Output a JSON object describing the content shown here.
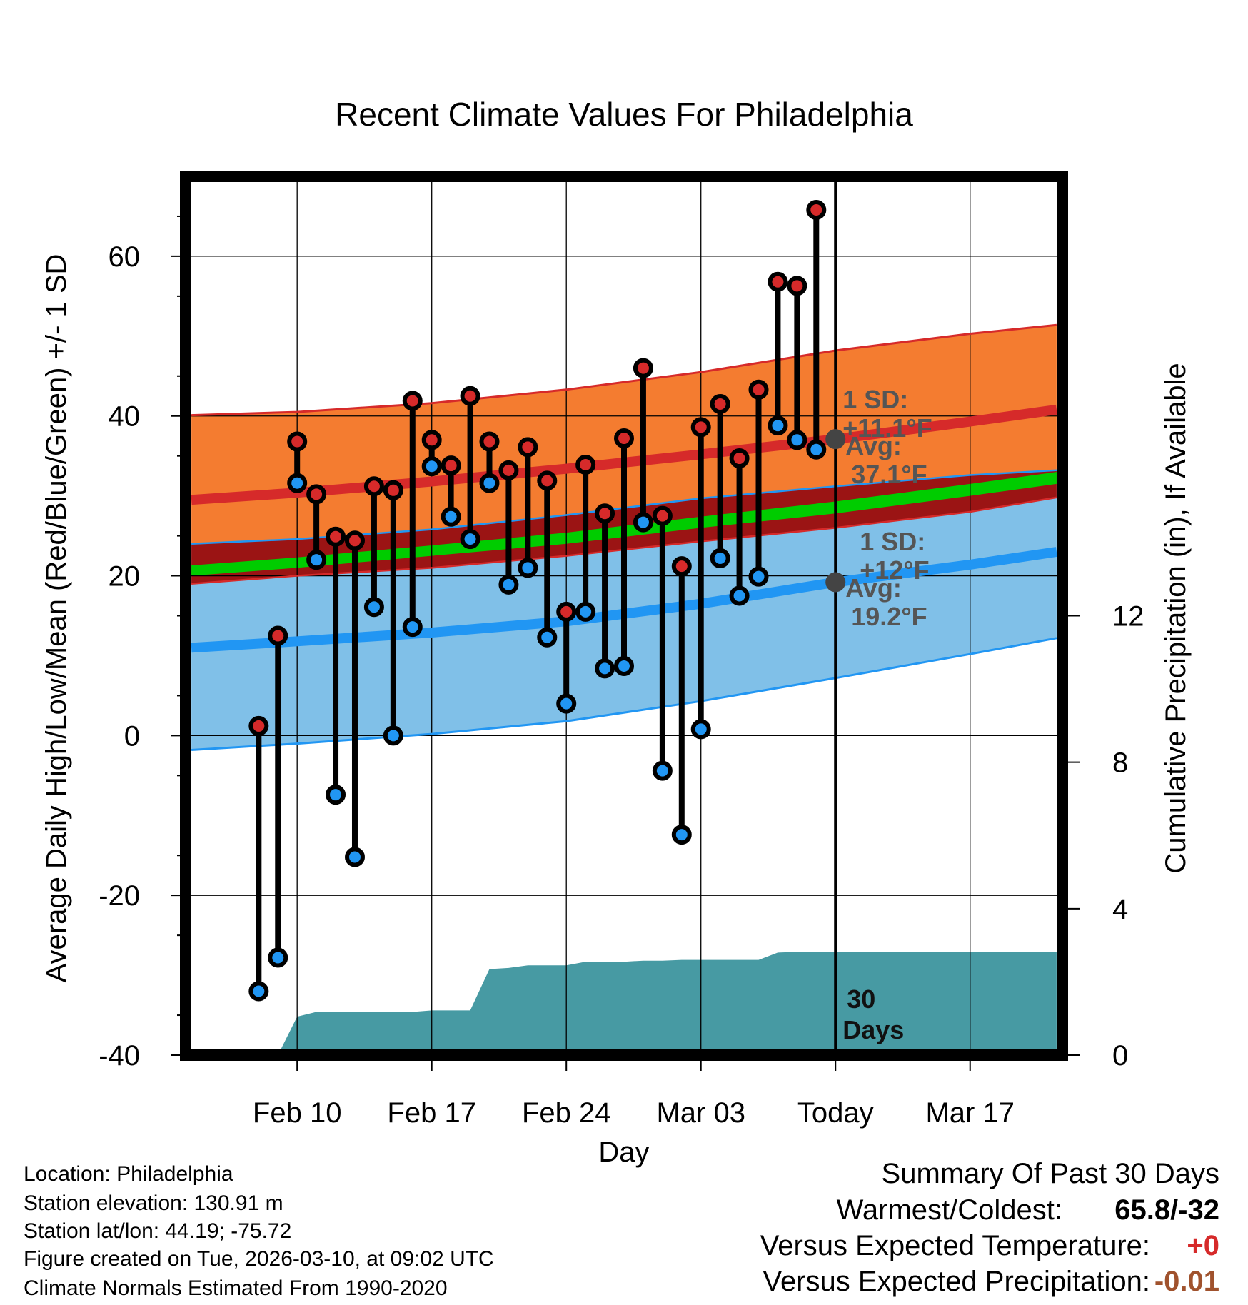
{
  "chart_data": {
    "type": "line",
    "title": "Recent Climate Values For Philadelphia",
    "xlabel": "Day",
    "ylabel": "Average Daily High/Low/Mean (Red/Blue/Green) +/- 1 SD",
    "y2label": "Cumulative Precipitation (in), If Available",
    "x_range_days": [
      -33.8,
      11.8
    ],
    "ylim": [
      -40,
      70
    ],
    "y2lim": [
      0,
      24
    ],
    "x_ticks": [
      {
        "day": -28,
        "label": "Feb 10"
      },
      {
        "day": -21,
        "label": "Feb 17"
      },
      {
        "day": -14,
        "label": "Feb 24"
      },
      {
        "day": -7,
        "label": "Mar 03"
      },
      {
        "day": 0,
        "label": "Today"
      },
      {
        "day": 7,
        "label": "Mar 17"
      }
    ],
    "y_ticks": [
      -40,
      -20,
      0,
      20,
      40,
      60
    ],
    "y2_ticks": [
      0,
      4,
      8,
      12
    ],
    "grid": true,
    "normals": {
      "days": [
        -33.5,
        -28,
        -21,
        -14,
        -7,
        0,
        7,
        11.5
      ],
      "high_avg": [
        29.5,
        30.4,
        31.8,
        33.4,
        35.2,
        37.1,
        39.3,
        40.8
      ],
      "high_upper": [
        40.1,
        40.5,
        41.6,
        43.3,
        45.5,
        48.2,
        50.3,
        51.4
      ],
      "high_lower": [
        19.0,
        20.0,
        21.0,
        22.5,
        24.3,
        26.0,
        28.0,
        29.8
      ],
      "low_avg": [
        11.0,
        11.8,
        12.9,
        14.3,
        16.5,
        19.2,
        21.4,
        23.0
      ],
      "low_upper": [
        24.0,
        24.6,
        25.8,
        27.6,
        29.7,
        31.2,
        32.6,
        33.2
      ],
      "low_lower": [
        -1.8,
        -1.0,
        0.2,
        1.8,
        4.3,
        7.2,
        10.2,
        12.2
      ],
      "mean_band_lower": [
        20.0,
        21.0,
        22.5,
        24.0,
        26.0,
        27.8,
        30.0,
        31.5
      ],
      "mean_band_upper": [
        21.3,
        22.3,
        23.8,
        25.4,
        27.4,
        29.3,
        31.5,
        33.0
      ]
    },
    "series": [
      {
        "name": "Daily High",
        "color": "#d62a2a",
        "days": [
          -30,
          -29,
          -28,
          -27,
          -26,
          -25,
          -24,
          -23,
          -22,
          -21,
          -20,
          -19,
          -18,
          -17,
          -16,
          -15,
          -14,
          -13,
          -12,
          -11,
          -10,
          -9,
          -8,
          -7,
          -6,
          -5,
          -4,
          -3,
          -2,
          -1
        ],
        "values": [
          1.2,
          12.5,
          36.8,
          30.2,
          24.9,
          24.4,
          31.2,
          30.7,
          41.9,
          37.0,
          33.8,
          42.5,
          36.8,
          33.2,
          36.1,
          31.9,
          15.5,
          33.9,
          27.8,
          37.2,
          46.0,
          27.5,
          21.2,
          38.6,
          41.5,
          34.7,
          43.3,
          56.8,
          56.3,
          65.8
        ]
      },
      {
        "name": "Daily Low",
        "color": "#2196f3",
        "days": [
          -30,
          -29,
          -28,
          -27,
          -26,
          -25,
          -24,
          -23,
          -22,
          -21,
          -20,
          -19,
          -18,
          -17,
          -16,
          -15,
          -14,
          -13,
          -12,
          -11,
          -10,
          -9,
          -8,
          -7,
          -6,
          -5,
          -4,
          -3,
          -2,
          -1
        ],
        "values": [
          -32.0,
          -27.8,
          31.6,
          22.0,
          -7.4,
          -15.2,
          16.1,
          0.0,
          13.6,
          33.7,
          27.4,
          24.6,
          31.6,
          18.9,
          21.0,
          12.3,
          4.0,
          15.5,
          8.4,
          8.7,
          26.7,
          -4.4,
          -12.4,
          0.8,
          22.2,
          17.5,
          19.9,
          38.8,
          37.0,
          35.8
        ]
      },
      {
        "name": "Cumulative Precipitation",
        "days": [
          -33.5,
          -29,
          -28,
          -27,
          -26,
          -22,
          -21,
          -20,
          -19,
          -18,
          -17,
          -16,
          -15,
          -14,
          -13,
          -12,
          -11,
          -10,
          -9,
          -8,
          -7,
          -6,
          -5,
          -4,
          -3,
          -2,
          -1,
          0,
          5,
          11.5
        ],
        "values": [
          0,
          0,
          1.05,
          1.18,
          1.18,
          1.18,
          1.22,
          1.22,
          1.22,
          2.35,
          2.38,
          2.45,
          2.45,
          2.45,
          2.55,
          2.55,
          2.55,
          2.58,
          2.58,
          2.6,
          2.6,
          2.6,
          2.6,
          2.6,
          2.8,
          2.82,
          2.82,
          2.82,
          2.82,
          2.82
        ]
      }
    ],
    "annotations": {
      "high_sd": "1 SD:",
      "high_sd_value": "+11.1°F",
      "high_avg": "Avg:",
      "high_avg_value": "37.1°F",
      "high_avg_marker": 37.1,
      "low_sd": "1 SD:",
      "low_sd_value": "+12°F",
      "low_avg": "Avg:",
      "low_avg_value": "19.2°F",
      "low_avg_marker": 19.2,
      "window_line1": "30",
      "window_line2": "Days"
    }
  },
  "info": {
    "location": "Location: Philadelphia",
    "elevation": "Station elevation: 130.91 m",
    "latlon": "Station lat/lon: 44.19; -75.72",
    "created": "Figure created on Tue, 2026-03-10, at 09:02 UTC",
    "normals": "Climate Normals Estimated From 1990-2020"
  },
  "summary": {
    "title": "Summary Of Past 30 Days",
    "warm_cold_label": "Warmest/Coldest:",
    "warm_cold_value": "65.8/-32",
    "temp_label": "Versus Expected Temperature:",
    "temp_value": "+0",
    "temp_color": "#d62a2a",
    "precip_label": "Versus Expected Precipitation:",
    "precip_value": "-0.01",
    "precip_color": "#a0522d"
  },
  "colors": {
    "high_band": "#f47c30",
    "high_line": "#d62a2a",
    "low_band": "#80c0e8",
    "low_line": "#2196f3",
    "overlap_band": "#9b1414",
    "mean_band": "#00cc00",
    "precip_fill": "#479aa3",
    "marker_gray": "#444444",
    "annotation_text": "#555555"
  }
}
